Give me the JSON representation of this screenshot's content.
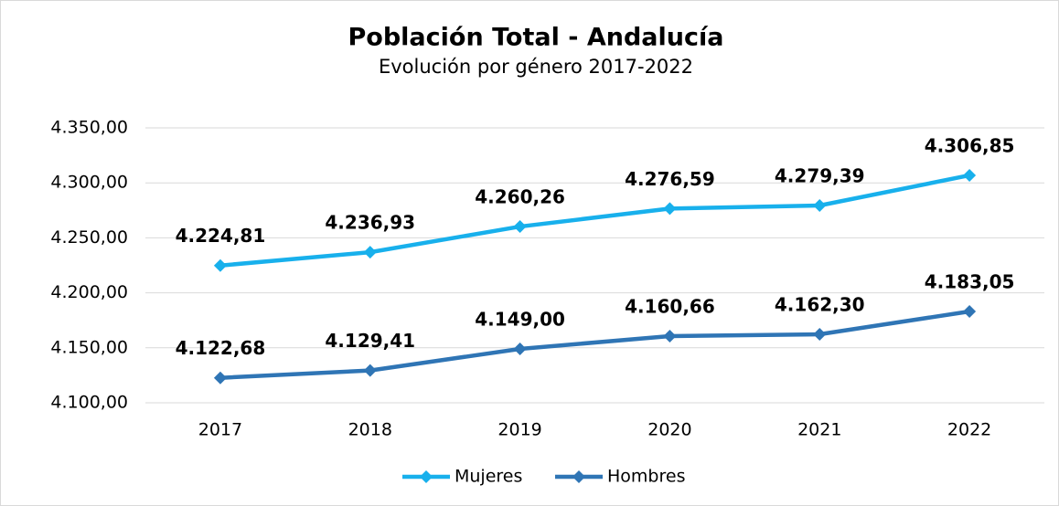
{
  "chart_data": {
    "type": "line",
    "title": "Población Total - Andalucía",
    "subtitle": "Evolución por género 2017-2022",
    "categories": [
      "2017",
      "2018",
      "2019",
      "2020",
      "2021",
      "2022"
    ],
    "series": [
      {
        "name": "Mujeres",
        "color": "#18b0ec",
        "values": [
          4224.81,
          4236.93,
          4260.26,
          4276.59,
          4279.39,
          4306.85
        ],
        "value_labels": [
          "4.224,81",
          "4.236,93",
          "4.260,26",
          "4.276,59",
          "4.279,39",
          "4.306,85"
        ]
      },
      {
        "name": "Hombres",
        "color": "#2f75b5",
        "values": [
          4122.68,
          4129.41,
          4149.0,
          4160.66,
          4162.3,
          4183.05
        ],
        "value_labels": [
          "4.122,68",
          "4.129,41",
          "4.149,00",
          "4.160,66",
          "4.162,30",
          "4.183,05"
        ]
      }
    ],
    "ylim": [
      4100,
      4350
    ],
    "yticks": [
      {
        "value": 4100,
        "label": "4.100,00"
      },
      {
        "value": 4150,
        "label": "4.150,00"
      },
      {
        "value": 4200,
        "label": "4.200,00"
      },
      {
        "value": 4250,
        "label": "4.250,00"
      },
      {
        "value": 4300,
        "label": "4.300,00"
      },
      {
        "value": 4350,
        "label": "4.350,00"
      }
    ],
    "grid": true,
    "legend": "bottom"
  }
}
